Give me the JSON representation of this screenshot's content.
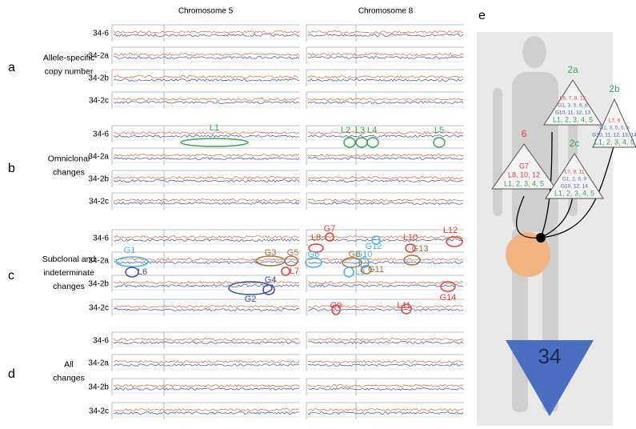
{
  "columns": [
    "Chromosome 5",
    "Chromosome 8"
  ],
  "panels": [
    {
      "letter": "a",
      "label": [
        "Allele-specific",
        "copy number"
      ],
      "samples": [
        "34-6",
        "34-2a",
        "34-2b",
        "34-2c"
      ],
      "marks": []
    },
    {
      "letter": "b",
      "label": [
        "Omniclonal",
        "changes"
      ],
      "samples": [
        "34-6",
        "34-2a",
        "34-2b",
        "34-2c"
      ],
      "marks": [
        "L1",
        "L2",
        "L3",
        "L4",
        "L5"
      ]
    },
    {
      "letter": "c",
      "label": [
        "Subclonal  and",
        "indeterminate",
        "changes"
      ],
      "samples": [
        "34-6",
        "34-2a",
        "34-2b",
        "34-2c"
      ],
      "marks": [
        "G1",
        "L6",
        "G2",
        "G4",
        "G3",
        "G5",
        "L7",
        "L8",
        "G7",
        "G6",
        "G8",
        "G10",
        "L9",
        "G12",
        "G11",
        "L10",
        "L12",
        "G13",
        "G14",
        "G9",
        "L11"
      ]
    },
    {
      "letter": "d",
      "label": [
        "All",
        "changes"
      ],
      "samples": [
        "34-6",
        "34-2a",
        "34-2b",
        "34-2c"
      ],
      "marks": []
    }
  ],
  "panel_e": {
    "letter": "e",
    "trees": [
      {
        "name": "6",
        "lines": [
          "G7",
          "L8, 10, 12",
          "L1, 2, 3, 4, 5"
        ]
      },
      {
        "name": "2a",
        "lines": [
          "L6, 7, 8, 12",
          "G1, 3, 5, 6, 8",
          "G10, 11, 12, 13",
          "L1, 2, 3, 4, 5"
        ]
      },
      {
        "name": "2b",
        "lines": [
          "L7, 9",
          "G1, 3, 5, 6, 8",
          "G10, 11, 12, 13, 14",
          "L1, 2, 3, 4, 5"
        ]
      },
      {
        "name": "2c",
        "lines": [
          "L7, 9, 11",
          "G1, 2, 6, 9",
          "G10, 12, 14",
          "L1, 2, 3, 4, 5"
        ]
      }
    ],
    "patient": "34"
  }
}
